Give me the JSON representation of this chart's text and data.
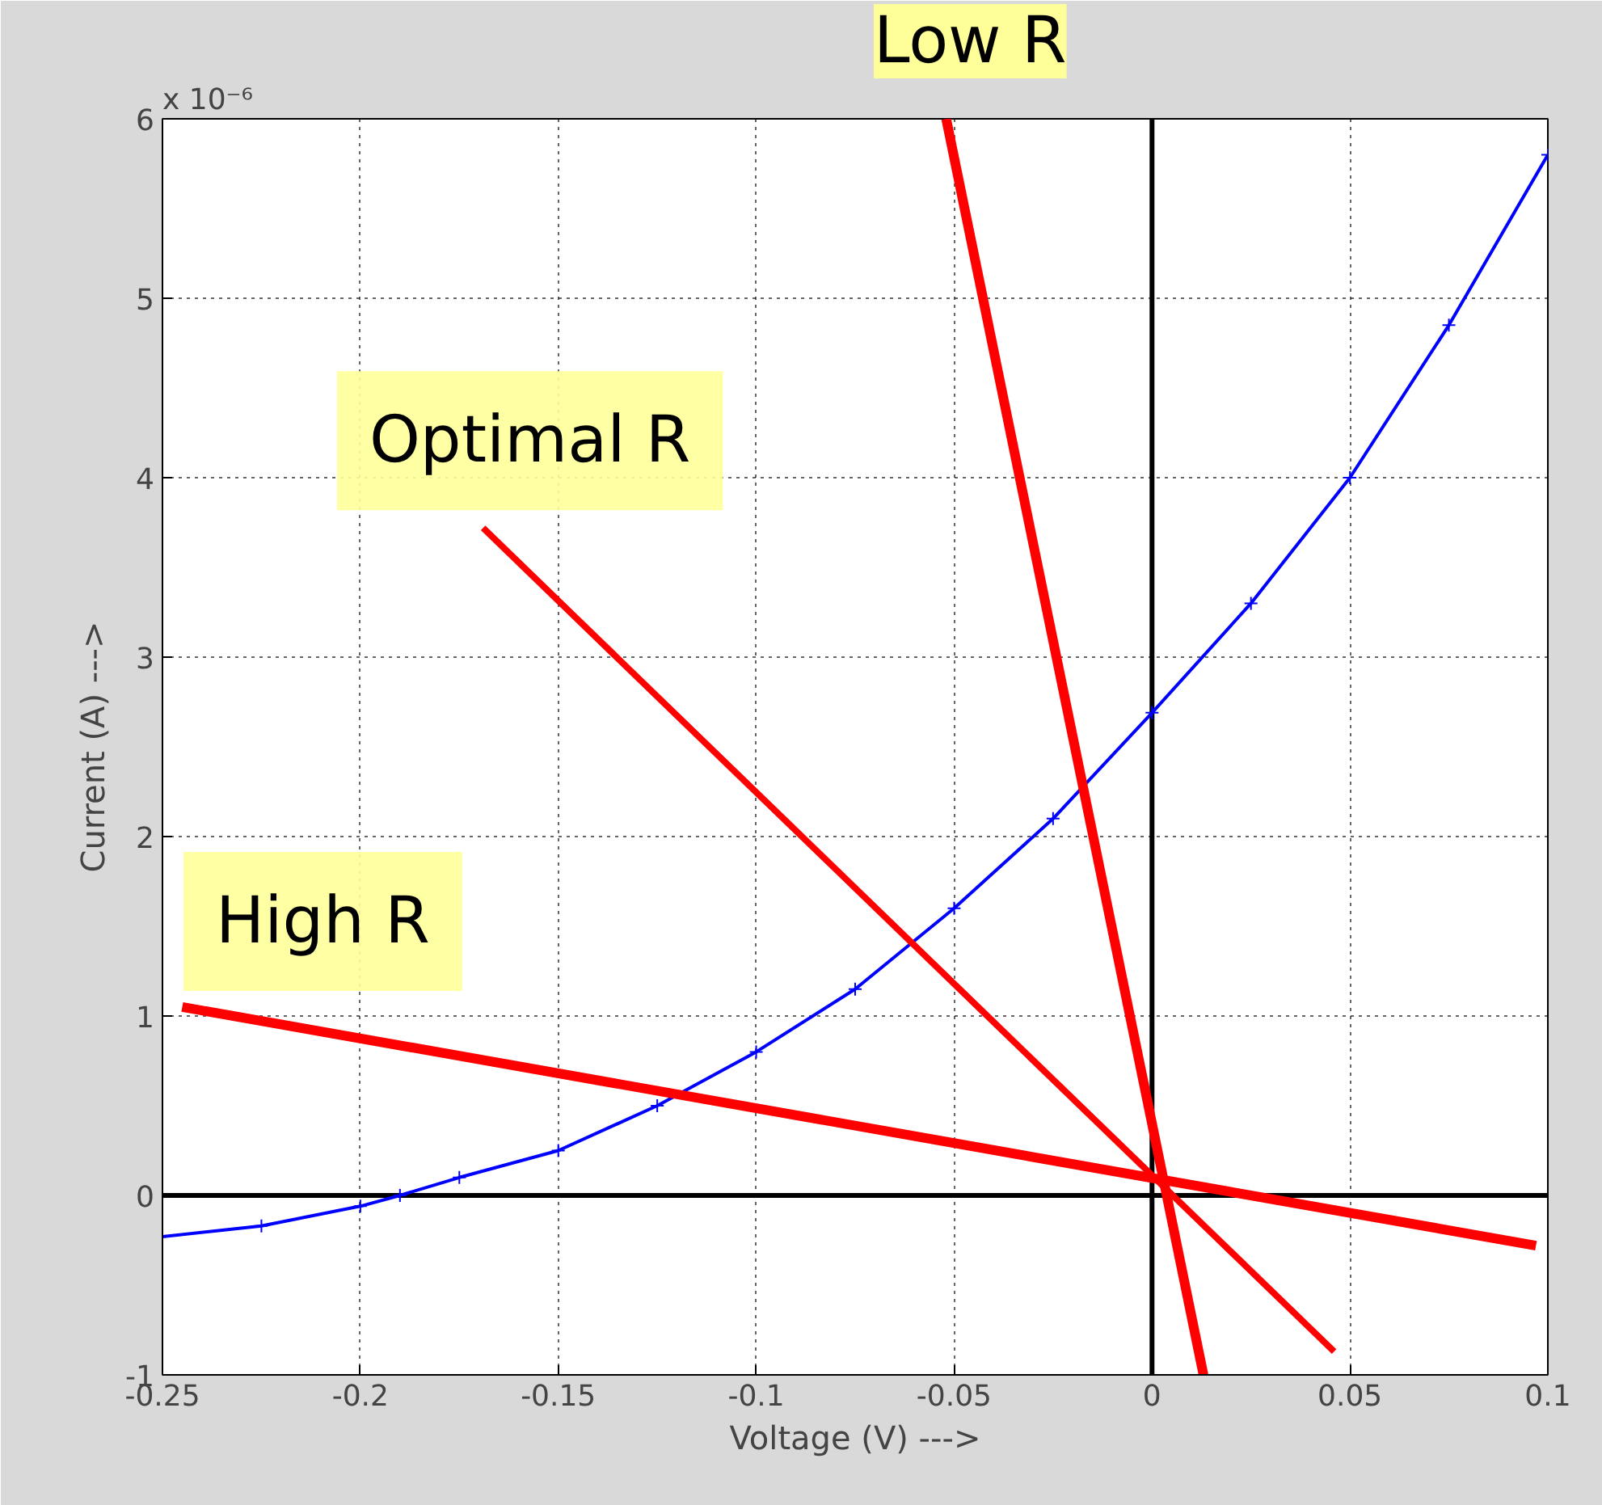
{
  "chart_data": {
    "type": "line",
    "xlabel": "Voltage (V) --->",
    "ylabel": "Current (A) --->",
    "annotations": [
      "x 10⁻⁶"
    ],
    "xlim": [
      -0.25,
      0.1
    ],
    "xticks": [
      -0.25,
      -0.2,
      -0.15,
      -0.1,
      -0.05,
      0,
      0.05,
      0.1
    ],
    "ylim": [
      -1,
      6
    ],
    "yticks": [
      -1,
      0,
      1,
      2,
      3,
      4,
      5,
      6
    ],
    "grid": true,
    "series": [
      {
        "color": "#000000",
        "x": [
          0,
          0
        ],
        "values": [
          -1,
          6
        ]
      },
      {
        "color": "#000000",
        "x": [
          -0.25,
          0.1
        ],
        "values": [
          0,
          0
        ]
      },
      {
        "color": "#0000ff",
        "marker": "cross",
        "x": [
          -0.25,
          -0.225,
          -0.2,
          -0.19,
          -0.175,
          -0.15,
          -0.125,
          -0.1,
          -0.075,
          -0.05,
          -0.025,
          0,
          0.025,
          0.05,
          0.075,
          0.1
        ],
        "values": [
          -0.23,
          -0.17,
          -0.06,
          0,
          0.1,
          0.25,
          0.5,
          0.8,
          1.15,
          1.6,
          2.1,
          2.69,
          3.3,
          4.0,
          4.85,
          5.8
        ]
      },
      {
        "name": "Low R",
        "color": "#ff0000",
        "x": [
          -0.052,
          0.013
        ],
        "values": [
          6.0,
          -1.0
        ]
      },
      {
        "name": "Optimal R",
        "color": "#ff0000",
        "x": [
          -0.169,
          0.046
        ],
        "values": [
          3.72,
          -0.87
        ]
      },
      {
        "name": "High R",
        "color": "#ff0000",
        "x": [
          -0.245,
          0.097
        ],
        "values": [
          1.05,
          -0.28
        ]
      }
    ]
  }
}
